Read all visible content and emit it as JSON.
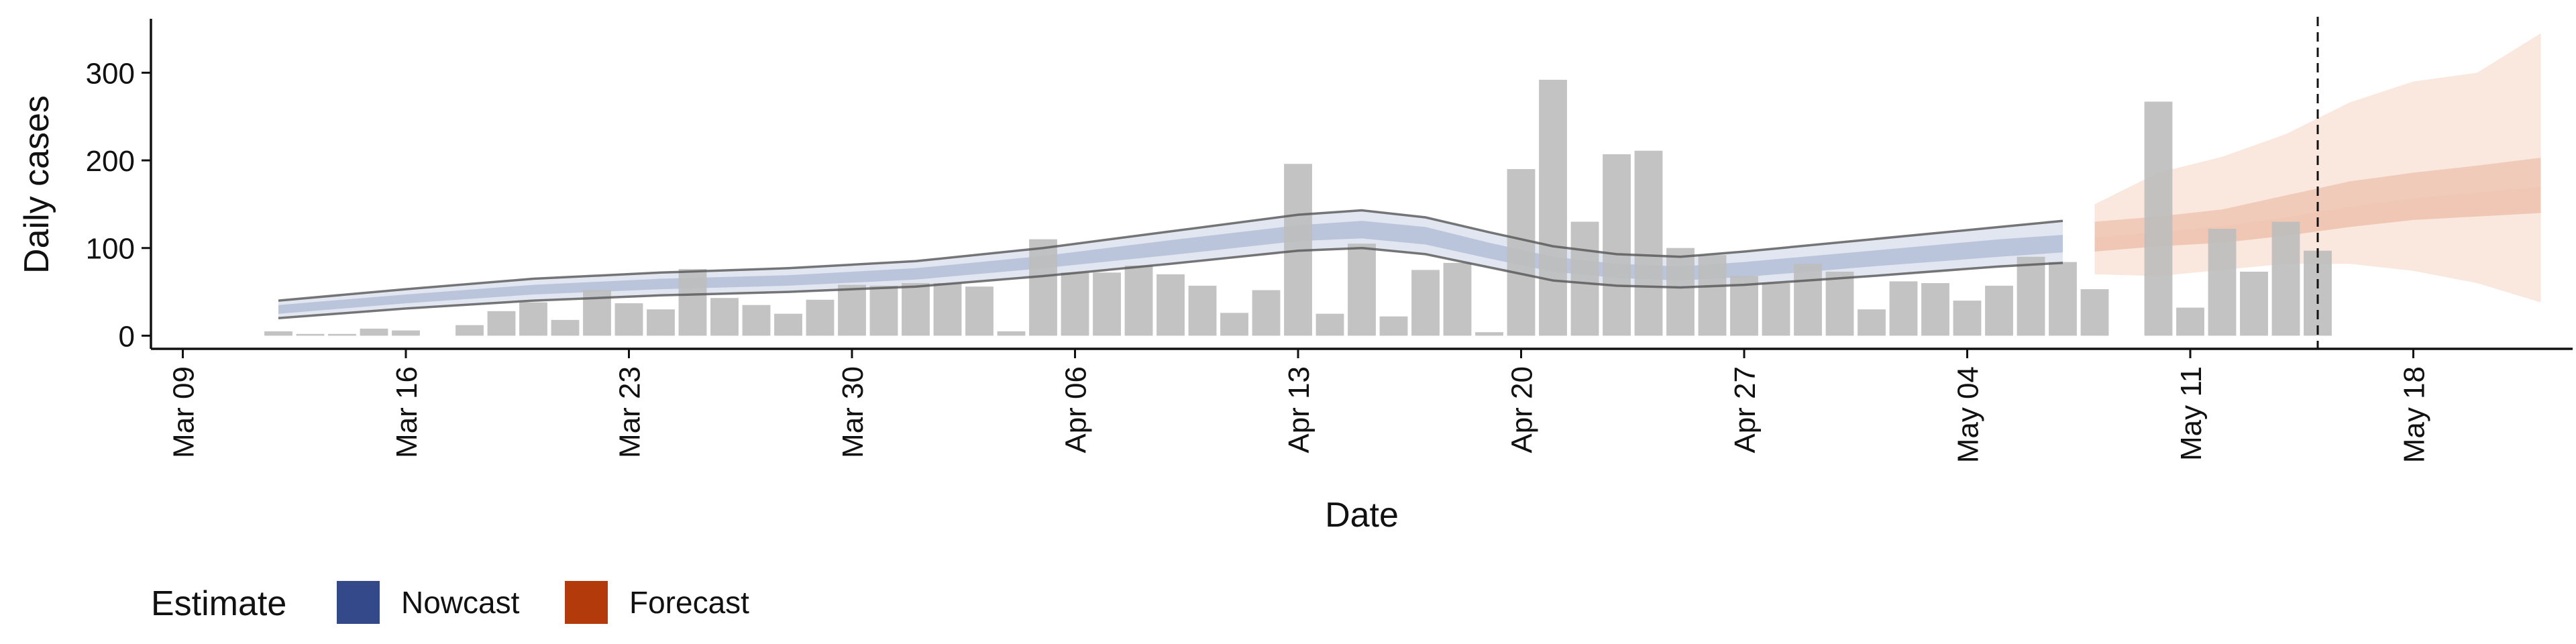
{
  "chart_data": {
    "type": "bar",
    "xlabel": "Date",
    "ylabel": "Daily cases",
    "ylim": [
      -15,
      360
    ],
    "yticks": [
      0,
      100,
      200,
      300
    ],
    "x_start": "Mar 08",
    "x_end": "May 23",
    "xticks": [
      "Mar 09",
      "Mar 16",
      "Mar 23",
      "Mar 30",
      "Apr 06",
      "Apr 13",
      "Apr 20",
      "Apr 27",
      "May 04",
      "May 11",
      "May 18"
    ],
    "vline_date": "May 15",
    "legend": {
      "title": "Estimate",
      "position": "bottom-left",
      "items": [
        {
          "label": "Nowcast",
          "color": "#34498a"
        },
        {
          "label": "Forecast",
          "color": "#b33a0b"
        }
      ]
    },
    "bars": {
      "color": "#bdbdbd",
      "dates": [
        "Mar 12",
        "Mar 13",
        "Mar 14",
        "Mar 15",
        "Mar 16",
        "Mar 17",
        "Mar 18",
        "Mar 19",
        "Mar 20",
        "Mar 21",
        "Mar 22",
        "Mar 23",
        "Mar 24",
        "Mar 25",
        "Mar 26",
        "Mar 27",
        "Mar 28",
        "Mar 29",
        "Mar 30",
        "Mar 31",
        "Apr 01",
        "Apr 02",
        "Apr 03",
        "Apr 04",
        "Apr 05",
        "Apr 06",
        "Apr 07",
        "Apr 08",
        "Apr 09",
        "Apr 10",
        "Apr 11",
        "Apr 12",
        "Apr 13",
        "Apr 14",
        "Apr 15",
        "Apr 16",
        "Apr 17",
        "Apr 18",
        "Apr 19",
        "Apr 20",
        "Apr 21",
        "Apr 22",
        "Apr 23",
        "Apr 24",
        "Apr 25",
        "Apr 26",
        "Apr 27",
        "Apr 28",
        "Apr 29",
        "Apr 30",
        "May 01",
        "May 02",
        "May 03",
        "May 04",
        "May 05",
        "May 06",
        "May 07",
        "May 08",
        "May 09",
        "May 10",
        "May 11",
        "May 12",
        "May 13",
        "May 14",
        "May 15"
      ],
      "values": [
        5,
        2,
        2,
        8,
        6,
        0,
        12,
        28,
        38,
        18,
        52,
        37,
        30,
        76,
        43,
        35,
        25,
        41,
        58,
        57,
        60,
        60,
        56,
        5,
        110,
        72,
        72,
        80,
        70,
        57,
        26,
        52,
        196,
        25,
        105,
        22,
        75,
        83,
        4,
        190,
        292,
        130,
        207,
        211,
        100,
        92,
        68,
        60,
        82,
        73,
        30,
        62,
        60,
        40,
        57,
        90,
        84,
        53,
        0,
        267,
        32,
        122,
        73,
        130,
        97
      ]
    },
    "nowcast": {
      "dates": [
        "Mar 12",
        "Mar 16",
        "Mar 20",
        "Mar 24",
        "Mar 28",
        "Apr 01",
        "Apr 05",
        "Apr 09",
        "Apr 13",
        "Apr 15",
        "Apr 17",
        "Apr 19",
        "Apr 21",
        "Apr 23",
        "Apr 25",
        "Apr 27",
        "May 01",
        "May 05",
        "May 07"
      ],
      "median": [
        30,
        42,
        52,
        59,
        63,
        70,
        84,
        100,
        117,
        121,
        114,
        97,
        82,
        74,
        71,
        76,
        88,
        100,
        105
      ],
      "lower_50": [
        25,
        37,
        47,
        53,
        57,
        64,
        77,
        92,
        108,
        111,
        104,
        88,
        73,
        66,
        63,
        67,
        79,
        90,
        95
      ],
      "upper_50": [
        35,
        47,
        58,
        65,
        69,
        77,
        91,
        109,
        126,
        131,
        124,
        106,
        90,
        82,
        79,
        84,
        97,
        110,
        115
      ],
      "lower_90": [
        20,
        31,
        40,
        46,
        50,
        56,
        68,
        82,
        97,
        100,
        93,
        78,
        63,
        57,
        55,
        58,
        68,
        79,
        83
      ],
      "upper_90": [
        40,
        53,
        65,
        72,
        77,
        85,
        100,
        119,
        138,
        143,
        135,
        118,
        102,
        93,
        90,
        96,
        110,
        124,
        131
      ]
    },
    "forecast": {
      "dates": [
        "May 08",
        "May 10",
        "May 12",
        "May 14",
        "May 16",
        "May 18",
        "May 20",
        "May 22"
      ],
      "median": [
        112,
        118,
        125,
        135,
        147,
        157,
        163,
        170
      ],
      "lower_50": [
        96,
        102,
        106,
        114,
        124,
        132,
        136,
        140
      ],
      "upper_50": [
        130,
        136,
        144,
        160,
        176,
        186,
        194,
        203
      ],
      "lower_90": [
        70,
        68,
        75,
        82,
        82,
        74,
        60,
        38
      ],
      "upper_90": [
        150,
        186,
        204,
        230,
        266,
        290,
        300,
        345
      ]
    }
  }
}
